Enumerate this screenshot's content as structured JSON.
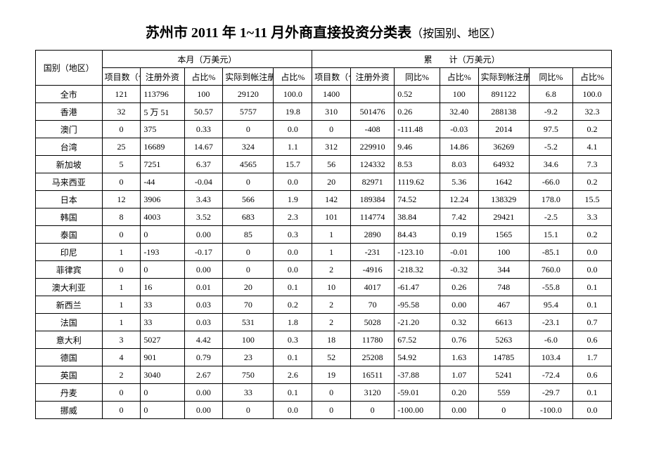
{
  "title_main": "苏州市 2011 年 1~11 月外商直接投资分类表",
  "title_sub": "（按国别、地区）",
  "header": {
    "region": "国别（地区）",
    "month_group": "本月（万美元）",
    "cum_group": "累　　计（万美元）",
    "month_cols": [
      "项目数（个）",
      "注册外资",
      "占比%",
      "实际到帐注册外资",
      "占比%"
    ],
    "cum_cols": [
      "项目数（个）",
      "注册外资",
      "同比%",
      "占比%",
      "实际到帐注册外资",
      "同比%",
      "占比%"
    ]
  },
  "rows": [
    {
      "region": "全市",
      "m": [
        "121",
        "113796",
        "100",
        "29120",
        "100.0"
      ],
      "c": [
        "1400",
        "",
        "0.52",
        "100",
        "891122",
        "6.8",
        "100.0"
      ]
    },
    {
      "region": "香港",
      "m": [
        "32",
        "5 万 51",
        "50.57",
        "5757",
        "19.8"
      ],
      "c": [
        "310",
        "501476",
        "0.26",
        "32.40",
        "288138",
        "-9.2",
        "32.3"
      ]
    },
    {
      "region": "澳门",
      "m": [
        "0",
        "375",
        "0.33",
        "0",
        "0.0"
      ],
      "c": [
        "0",
        "-408",
        "-111.48",
        "-0.03",
        "2014",
        "97.5",
        "0.2"
      ]
    },
    {
      "region": "台湾",
      "m": [
        "25",
        "16689",
        "14.67",
        "324",
        "1.1"
      ],
      "c": [
        "312",
        "229910",
        "9.46",
        "14.86",
        "36269",
        "-5.2",
        "4.1"
      ]
    },
    {
      "region": "新加坡",
      "m": [
        "5",
        "7251",
        "6.37",
        "4565",
        "15.7"
      ],
      "c": [
        "56",
        "124332",
        "8.53",
        "8.03",
        "64932",
        "34.6",
        "7.3"
      ]
    },
    {
      "region": "马来西亚",
      "m": [
        "0",
        "-44",
        "-0.04",
        "0",
        "0.0"
      ],
      "c": [
        "20",
        "82971",
        "1119.62",
        "5.36",
        "1642",
        "-66.0",
        "0.2"
      ]
    },
    {
      "region": "日本",
      "m": [
        "12",
        "3906",
        "3.43",
        "566",
        "1.9"
      ],
      "c": [
        "142",
        "189384",
        "74.52",
        "12.24",
        "138329",
        "178.0",
        "15.5"
      ]
    },
    {
      "region": "韩国",
      "m": [
        "8",
        "4003",
        "3.52",
        "683",
        "2.3"
      ],
      "c": [
        "101",
        "114774",
        "38.84",
        "7.42",
        "29421",
        "-2.5",
        "3.3"
      ]
    },
    {
      "region": "泰国",
      "m": [
        "0",
        "0",
        "0.00",
        "85",
        "0.3"
      ],
      "c": [
        "1",
        "2890",
        "84.43",
        "0.19",
        "1565",
        "15.1",
        "0.2"
      ]
    },
    {
      "region": "印尼",
      "m": [
        "1",
        "-193",
        "-0.17",
        "0",
        "0.0"
      ],
      "c": [
        "1",
        "-231",
        "-123.10",
        "-0.01",
        "100",
        "-85.1",
        "0.0"
      ]
    },
    {
      "region": "菲律宾",
      "m": [
        "0",
        "0",
        "0.00",
        "0",
        "0.0"
      ],
      "c": [
        "2",
        "-4916",
        "-218.32",
        "-0.32",
        "344",
        "760.0",
        "0.0"
      ]
    },
    {
      "region": "澳大利亚",
      "m": [
        "1",
        "16",
        "0.01",
        "20",
        "0.1"
      ],
      "c": [
        "10",
        "4017",
        "-61.47",
        "0.26",
        "748",
        "-55.8",
        "0.1"
      ]
    },
    {
      "region": "新西兰",
      "m": [
        "1",
        "33",
        "0.03",
        "70",
        "0.2"
      ],
      "c": [
        "2",
        "70",
        "-95.58",
        "0.00",
        "467",
        "95.4",
        "0.1"
      ]
    },
    {
      "region": "法国",
      "m": [
        "1",
        "33",
        "0.03",
        "531",
        "1.8"
      ],
      "c": [
        "2",
        "5028",
        "-21.20",
        "0.32",
        "6613",
        "-23.1",
        "0.7"
      ]
    },
    {
      "region": "意大利",
      "m": [
        "3",
        "5027",
        "4.42",
        "100",
        "0.3"
      ],
      "c": [
        "18",
        "11780",
        "67.52",
        "0.76",
        "5263",
        "-6.0",
        "0.6"
      ]
    },
    {
      "region": "德国",
      "m": [
        "4",
        "901",
        "0.79",
        "23",
        "0.1"
      ],
      "c": [
        "52",
        "25208",
        "54.92",
        "1.63",
        "14785",
        "103.4",
        "1.7"
      ]
    },
    {
      "region": "英国",
      "m": [
        "2",
        "3040",
        "2.67",
        "750",
        "2.6"
      ],
      "c": [
        "19",
        "16511",
        "-37.88",
        "1.07",
        "5241",
        "-72.4",
        "0.6"
      ]
    },
    {
      "region": "丹麦",
      "m": [
        "0",
        "0",
        "0.00",
        "33",
        "0.1"
      ],
      "c": [
        "0",
        "3120",
        "-59.01",
        "0.20",
        "559",
        "-29.7",
        "0.1"
      ]
    },
    {
      "region": "挪威",
      "m": [
        "0",
        "0",
        "0.00",
        "0",
        "0.0"
      ],
      "c": [
        "0",
        "0",
        "-100.00",
        "0.00",
        "0",
        "-100.0",
        "0.0"
      ]
    }
  ]
}
